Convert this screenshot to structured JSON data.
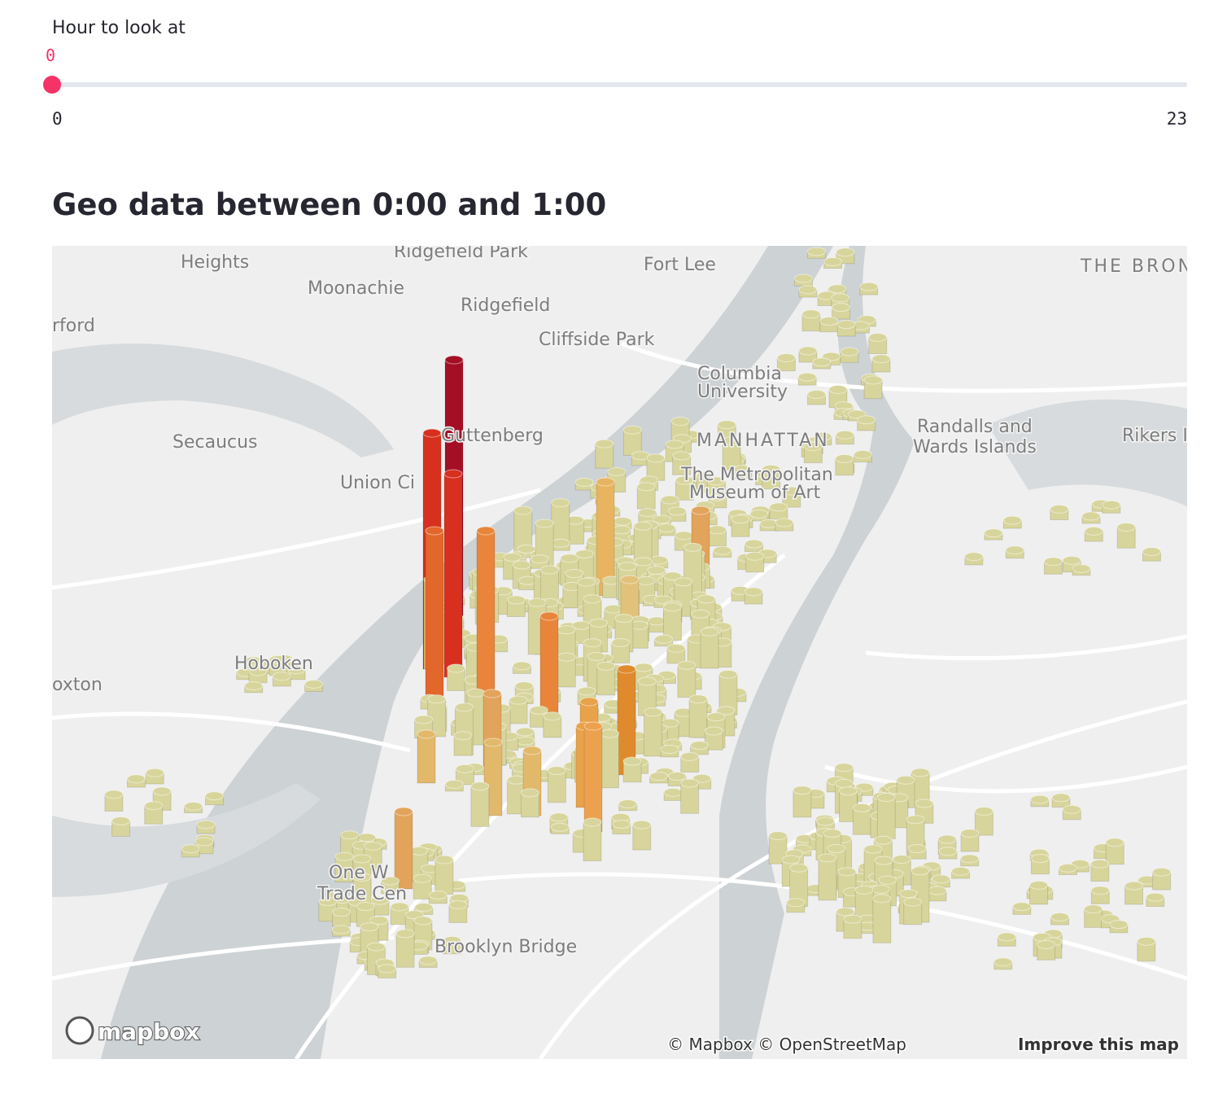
{
  "slider": {
    "label": "Hour to look at",
    "value": 0,
    "min": 0,
    "max": 23
  },
  "heading": "Geo data between 0:00 and 1:00",
  "map": {
    "labels": [
      "Heights",
      "Ridgefield Park",
      "Fort Lee",
      "THE BRONX",
      "Moonachie",
      "Ridgefield",
      "rford",
      "Cliffside Park",
      "Secaucus",
      "Guttenberg",
      "Union Ci",
      "Columbia",
      "University",
      "MANHATTAN",
      "The Metropolitan",
      "Museum of Art",
      "Randalls and",
      "Wards Islands",
      "Rikers Is",
      "Hoboken",
      "oxton",
      "One W",
      "Trade Cen",
      "Brooklyn Bridge"
    ],
    "logo": "mapbox",
    "attribution": "© Mapbox © OpenStreetMap",
    "improve": "Improve this map"
  }
}
